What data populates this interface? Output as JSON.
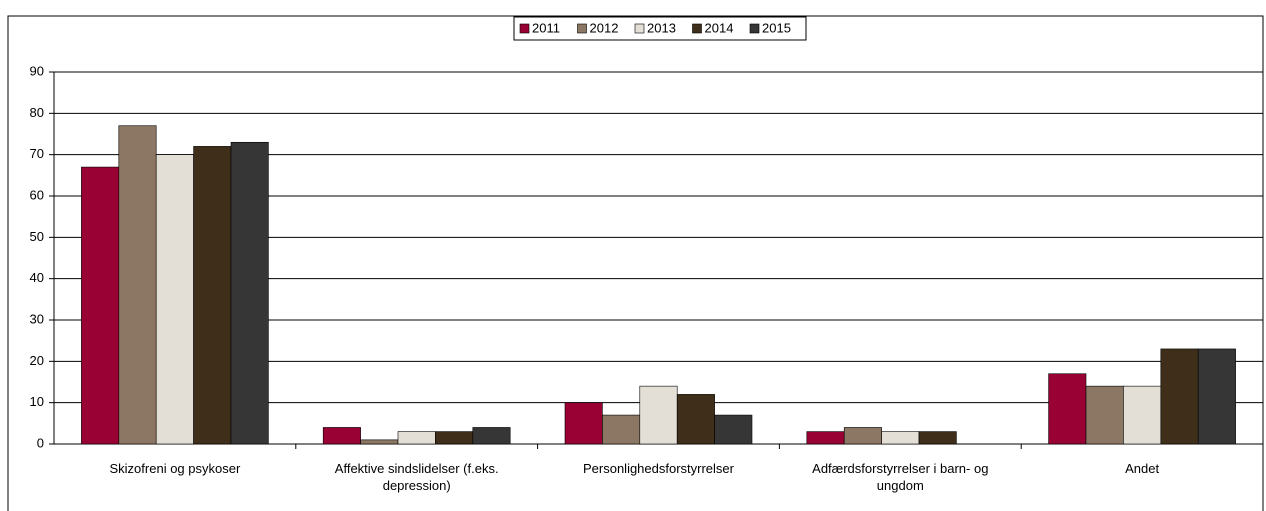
{
  "chart_data": {
    "type": "bar",
    "categories": [
      "Skizofreni og psykoser",
      "Affektive sindslidelser (f.eks. depression)",
      "Personlighedsforstyrrelser",
      "Adfærdsforstyrrelser i barn- og ungdom",
      "Andet"
    ],
    "series": [
      {
        "name": "2011",
        "color": "#990033",
        "values": [
          67,
          4,
          10,
          3,
          17
        ]
      },
      {
        "name": "2012",
        "color": "#8b7763",
        "values": [
          77,
          1,
          7,
          4,
          14
        ]
      },
      {
        "name": "2013",
        "color": "#e4dfd6",
        "values": [
          70,
          3,
          14,
          3,
          14
        ]
      },
      {
        "name": "2014",
        "color": "#3f2f1a",
        "values": [
          72,
          3,
          12,
          3,
          23
        ]
      },
      {
        "name": "2015",
        "color": "#363636",
        "values": [
          73,
          4,
          7,
          null,
          23
        ]
      }
    ],
    "ylim": [
      0,
      90
    ],
    "yticks": [
      0,
      10,
      20,
      30,
      40,
      50,
      60,
      70,
      80,
      90
    ],
    "grid": true,
    "legend": "top"
  }
}
